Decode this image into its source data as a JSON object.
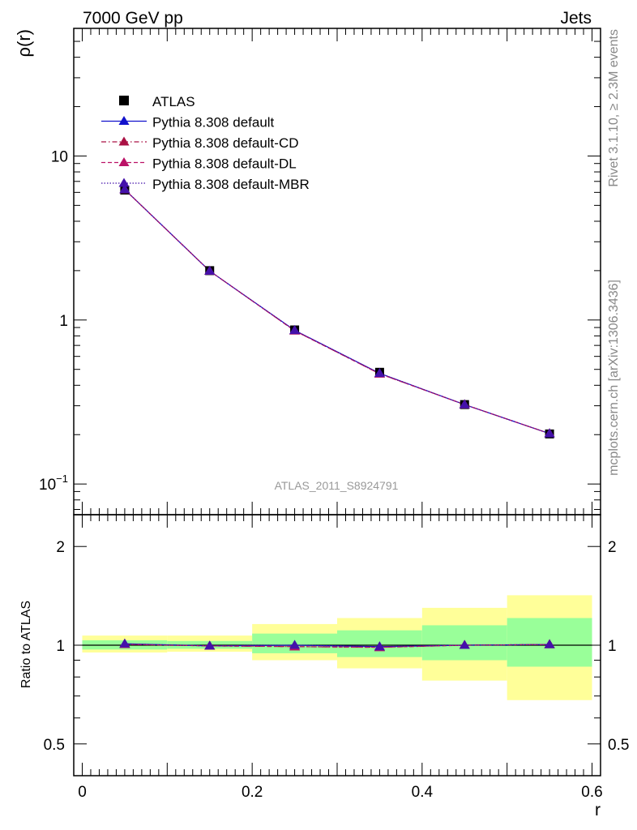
{
  "header": {
    "left_title": "7000 GeV pp",
    "right_title": "Jets",
    "analysis_id": "ATLAS_2011_S8924791",
    "side_label_top": "Rivet 3.1.10, ≥ 2.3M events",
    "side_label_bottom": "mcplots.cern.ch [arXiv:1306.3436]"
  },
  "legend": {
    "items": [
      {
        "label": "ATLAS",
        "color": "#000000",
        "marker": "square",
        "line": "none"
      },
      {
        "label": "Pythia 8.308 default",
        "color": "#1111cc",
        "marker": "triangle",
        "line": "solid"
      },
      {
        "label": "Pythia 8.308 default-CD",
        "color": "#aa1144",
        "marker": "triangle",
        "line": "dashdot"
      },
      {
        "label": "Pythia 8.308 default-DL",
        "color": "#bb1166",
        "marker": "triangle",
        "line": "dashed"
      },
      {
        "label": "Pythia 8.308 default-MBR",
        "color": "#4411aa",
        "marker": "triangle",
        "line": "dotted"
      }
    ]
  },
  "chart_data": [
    {
      "type": "line",
      "panel": "main",
      "ylabel": "ρ(r)",
      "yscale": "log",
      "ylim": [
        0.065,
        60
      ],
      "xlim": [
        -0.01,
        0.61
      ],
      "y_ticks": [
        {
          "value": 0.1,
          "base": "10",
          "exp": "−1"
        },
        {
          "value": 1,
          "base": "1",
          "exp": ""
        },
        {
          "value": 10,
          "base": "10",
          "exp": ""
        }
      ],
      "x": [
        0.05,
        0.15,
        0.25,
        0.35,
        0.45,
        0.55
      ],
      "data": {
        "name": "ATLAS",
        "values": [
          6.2,
          2.0,
          0.87,
          0.48,
          0.305,
          0.202
        ]
      },
      "series": [
        {
          "name": "Pythia 8.308 default",
          "values": [
            6.25,
            1.99,
            0.865,
            0.473,
            0.305,
            0.203
          ]
        },
        {
          "name": "Pythia 8.308 default-CD",
          "values": [
            6.24,
            1.99,
            0.86,
            0.47,
            0.305,
            0.203
          ]
        },
        {
          "name": "Pythia 8.308 default-DL",
          "values": [
            6.24,
            1.99,
            0.86,
            0.47,
            0.305,
            0.203
          ]
        },
        {
          "name": "Pythia 8.308 default-MBR",
          "values": [
            6.25,
            1.99,
            0.865,
            0.473,
            0.305,
            0.203
          ]
        }
      ]
    },
    {
      "type": "line",
      "panel": "ratio",
      "ylabel": "Ratio to ATLAS",
      "xlabel": "r",
      "yscale": "log",
      "ylim": [
        0.4,
        2.5
      ],
      "xlim": [
        -0.01,
        0.61
      ],
      "y_ticks": [
        0.5,
        1,
        2
      ],
      "y_tick_labels": [
        "0.5",
        "1",
        "2"
      ],
      "x_ticks": [
        0,
        0.2,
        0.4,
        0.6
      ],
      "x_tick_labels": [
        "0",
        "0.2",
        "0.4",
        "0.6"
      ],
      "bins": [
        [
          0.0,
          0.1
        ],
        [
          0.1,
          0.2
        ],
        [
          0.2,
          0.3
        ],
        [
          0.3,
          0.4
        ],
        [
          0.4,
          0.5
        ],
        [
          0.5,
          0.6
        ]
      ],
      "band_inner": [
        [
          0.97,
          1.035
        ],
        [
          0.975,
          1.03
        ],
        [
          0.945,
          1.085
        ],
        [
          0.92,
          1.11
        ],
        [
          0.9,
          1.15
        ],
        [
          0.86,
          1.21
        ]
      ],
      "band_outer": [
        [
          0.95,
          1.07
        ],
        [
          0.955,
          1.07
        ],
        [
          0.9,
          1.16
        ],
        [
          0.85,
          1.21
        ],
        [
          0.78,
          1.3
        ],
        [
          0.68,
          1.42
        ]
      ],
      "x": [
        0.05,
        0.15,
        0.25,
        0.35,
        0.45,
        0.55
      ],
      "series": [
        {
          "name": "Pythia 8.308 default",
          "values": [
            1.01,
            0.995,
            1.0,
            0.99,
            1.0,
            1.005
          ]
        },
        {
          "name": "Pythia 8.308 default-CD",
          "values": [
            1.006,
            0.995,
            0.99,
            0.985,
            1.0,
            1.005
          ]
        },
        {
          "name": "Pythia 8.308 default-DL",
          "values": [
            1.006,
            0.995,
            0.99,
            0.985,
            1.0,
            1.005
          ]
        },
        {
          "name": "Pythia 8.308 default-MBR",
          "values": [
            1.01,
            0.995,
            1.0,
            0.99,
            1.0,
            1.005
          ]
        }
      ],
      "colors": {
        "band_inner": "#99ff99",
        "band_outer": "#ffff99",
        "reference": "#000000"
      }
    }
  ]
}
